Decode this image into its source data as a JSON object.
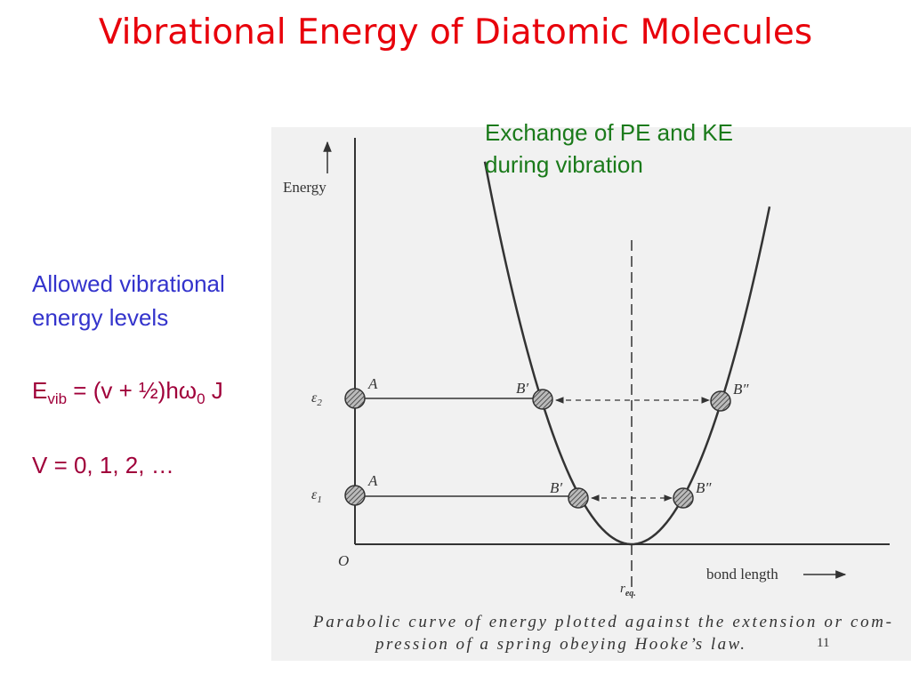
{
  "title": "Vibrational Energy of Diatomic Molecules",
  "annotation": {
    "lines": [
      "Exchange of PE and KE",
      "during vibration"
    ]
  },
  "left_text": {
    "heading": {
      "lines": [
        "Allowed vibrational",
        "energy levels"
      ]
    },
    "formula": {
      "symbol": "E",
      "sub": "vib",
      "middle": " = (v + ½)hω",
      "sub2": "0",
      "end": " J"
    },
    "quantum_numbers": "V = 0, 1, 2, …"
  },
  "figure": {
    "y_axis_label": "Energy",
    "levels": [
      {
        "symbol": "ε",
        "sub": "2",
        "left": "A",
        "mid": "B′",
        "right": "B″"
      },
      {
        "symbol": "ε",
        "sub": "1",
        "left": "A",
        "mid": "B′",
        "right": "B″"
      }
    ],
    "origin": "O",
    "x_axis_label": "bond length",
    "r_eq": {
      "symbol": "r",
      "sub": "eq."
    },
    "caption": [
      "Parabolic curve of energy plotted against the extension or com-",
      "pression of a spring obeying Hooke’s law."
    ]
  },
  "page_number": "11"
}
